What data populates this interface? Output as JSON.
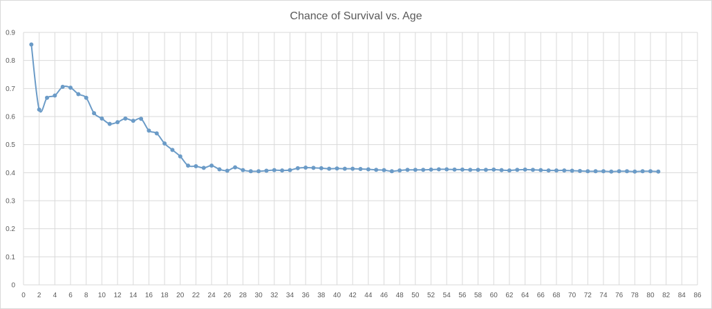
{
  "chart_data": {
    "type": "line",
    "title": "Chance of Survival vs. Age",
    "xlabel": "",
    "ylabel": "",
    "xlim": [
      0,
      86
    ],
    "ylim": [
      0,
      0.9
    ],
    "x_ticks": [
      0,
      2,
      4,
      6,
      8,
      10,
      12,
      14,
      16,
      18,
      20,
      22,
      24,
      26,
      28,
      30,
      32,
      34,
      36,
      38,
      40,
      42,
      44,
      46,
      48,
      50,
      52,
      54,
      56,
      58,
      60,
      62,
      64,
      66,
      68,
      70,
      72,
      74,
      76,
      78,
      80,
      82,
      84,
      86
    ],
    "y_ticks": [
      0,
      0.1,
      0.2,
      0.3,
      0.4,
      0.5,
      0.6,
      0.7,
      0.8,
      0.9
    ],
    "grid": "vertical and horizontal",
    "line_color": "#6b9bc7",
    "grid_color": "#d9d9d9",
    "series": [
      {
        "x": [
          1,
          2,
          3,
          4,
          5,
          6,
          7,
          8,
          9,
          10,
          11,
          12,
          13,
          14,
          15,
          16,
          17,
          18,
          19,
          20,
          21,
          22,
          23,
          24,
          25,
          26,
          27,
          28,
          29,
          30,
          31,
          32,
          33,
          34,
          35,
          36,
          37,
          38,
          39,
          40,
          41,
          42,
          43,
          44,
          45,
          46,
          47,
          48,
          49,
          50,
          51,
          52,
          53,
          54,
          55,
          56,
          57,
          58,
          59,
          60,
          61,
          62,
          63,
          64,
          65,
          66,
          67,
          68,
          69,
          70,
          71,
          72,
          73,
          74,
          75,
          76,
          77,
          78,
          79,
          80,
          81
        ],
        "y": [
          0.857,
          0.625,
          0.667,
          0.675,
          0.706,
          0.703,
          0.68,
          0.667,
          0.612,
          0.593,
          0.574,
          0.58,
          0.593,
          0.585,
          0.592,
          0.55,
          0.54,
          0.504,
          0.481,
          0.458,
          0.425,
          0.423,
          0.417,
          0.425,
          0.412,
          0.407,
          0.419,
          0.409,
          0.405,
          0.405,
          0.407,
          0.409,
          0.408,
          0.409,
          0.416,
          0.418,
          0.417,
          0.416,
          0.414,
          0.415,
          0.414,
          0.414,
          0.413,
          0.412,
          0.41,
          0.409,
          0.405,
          0.408,
          0.41,
          0.41,
          0.41,
          0.411,
          0.412,
          0.412,
          0.411,
          0.411,
          0.41,
          0.41,
          0.41,
          0.411,
          0.409,
          0.408,
          0.41,
          0.411,
          0.41,
          0.409,
          0.408,
          0.408,
          0.408,
          0.407,
          0.406,
          0.405,
          0.405,
          0.405,
          0.404,
          0.405,
          0.405,
          0.404,
          0.405,
          0.405,
          0.404
        ]
      }
    ]
  }
}
